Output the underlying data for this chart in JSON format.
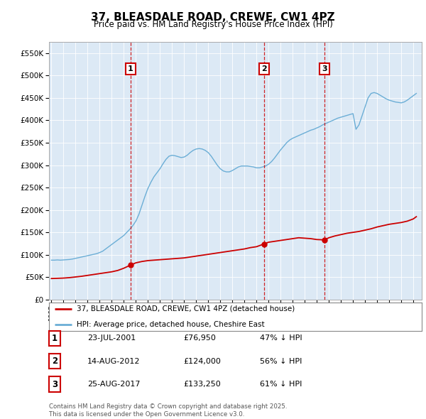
{
  "title": "37, BLEASDALE ROAD, CREWE, CW1 4PZ",
  "subtitle": "Price paid vs. HM Land Registry's House Price Index (HPI)",
  "plot_bg_color": "#dce9f5",
  "hpi_color": "#6baed6",
  "price_color": "#cc0000",
  "sale_dates": [
    2001.556,
    2012.617,
    2017.644
  ],
  "sale_prices": [
    76950,
    124000,
    133250
  ],
  "sale_labels": [
    "1",
    "2",
    "3"
  ],
  "annotation_rows": [
    {
      "label": "1",
      "date": "23-JUL-2001",
      "price": "£76,950",
      "note": "47% ↓ HPI"
    },
    {
      "label": "2",
      "date": "14-AUG-2012",
      "price": "£124,000",
      "note": "56% ↓ HPI"
    },
    {
      "label": "3",
      "date": "25-AUG-2017",
      "price": "£133,250",
      "note": "61% ↓ HPI"
    }
  ],
  "legend_line1": "37, BLEASDALE ROAD, CREWE, CW1 4PZ (detached house)",
  "legend_line2": "HPI: Average price, detached house, Cheshire East",
  "footer": "Contains HM Land Registry data © Crown copyright and database right 2025.\nThis data is licensed under the Open Government Licence v3.0.",
  "ytick_values": [
    0,
    50000,
    100000,
    150000,
    200000,
    250000,
    300000,
    350000,
    400000,
    450000,
    500000,
    550000
  ],
  "ylim": [
    0,
    575000
  ],
  "xlim_start": 1994.8,
  "xlim_end": 2025.7,
  "hpi_data_years": [
    1995.0,
    1995.25,
    1995.5,
    1995.75,
    1996.0,
    1996.25,
    1996.5,
    1996.75,
    1997.0,
    1997.25,
    1997.5,
    1997.75,
    1998.0,
    1998.25,
    1998.5,
    1998.75,
    1999.0,
    1999.25,
    1999.5,
    1999.75,
    2000.0,
    2000.25,
    2000.5,
    2000.75,
    2001.0,
    2001.25,
    2001.5,
    2001.75,
    2002.0,
    2002.25,
    2002.5,
    2002.75,
    2003.0,
    2003.25,
    2003.5,
    2003.75,
    2004.0,
    2004.25,
    2004.5,
    2004.75,
    2005.0,
    2005.25,
    2005.5,
    2005.75,
    2006.0,
    2006.25,
    2006.5,
    2006.75,
    2007.0,
    2007.25,
    2007.5,
    2007.75,
    2008.0,
    2008.25,
    2008.5,
    2008.75,
    2009.0,
    2009.25,
    2009.5,
    2009.75,
    2010.0,
    2010.25,
    2010.5,
    2010.75,
    2011.0,
    2011.25,
    2011.5,
    2011.75,
    2012.0,
    2012.25,
    2012.5,
    2012.75,
    2013.0,
    2013.25,
    2013.5,
    2013.75,
    2014.0,
    2014.25,
    2014.5,
    2014.75,
    2015.0,
    2015.25,
    2015.5,
    2015.75,
    2016.0,
    2016.25,
    2016.5,
    2016.75,
    2017.0,
    2017.25,
    2017.5,
    2017.75,
    2018.0,
    2018.25,
    2018.5,
    2018.75,
    2019.0,
    2019.25,
    2019.5,
    2019.75,
    2020.0,
    2020.25,
    2020.5,
    2020.75,
    2021.0,
    2021.25,
    2021.5,
    2021.75,
    2022.0,
    2022.25,
    2022.5,
    2022.75,
    2023.0,
    2023.25,
    2023.5,
    2023.75,
    2024.0,
    2024.25,
    2024.5,
    2024.75,
    2025.0,
    2025.25
  ],
  "hpi_data_values": [
    88000,
    88000,
    88500,
    88000,
    88500,
    89000,
    89500,
    90500,
    92000,
    93500,
    95000,
    96500,
    98000,
    99500,
    101000,
    102500,
    105000,
    108000,
    113000,
    118000,
    123000,
    128000,
    133000,
    138000,
    143000,
    150000,
    157000,
    165000,
    175000,
    190000,
    210000,
    230000,
    248000,
    262000,
    274000,
    283000,
    292000,
    303000,
    313000,
    320000,
    322000,
    321000,
    319000,
    317000,
    318000,
    322000,
    328000,
    333000,
    336000,
    337000,
    336000,
    333000,
    328000,
    320000,
    310000,
    300000,
    292000,
    287000,
    285000,
    285000,
    288000,
    292000,
    296000,
    298000,
    298000,
    298000,
    297000,
    296000,
    294000,
    294000,
    296000,
    298000,
    302000,
    308000,
    316000,
    325000,
    334000,
    342000,
    350000,
    356000,
    360000,
    363000,
    366000,
    369000,
    372000,
    375000,
    378000,
    380000,
    383000,
    386000,
    390000,
    393000,
    396000,
    399000,
    402000,
    405000,
    407000,
    409000,
    411000,
    413000,
    415000,
    380000,
    390000,
    410000,
    430000,
    450000,
    460000,
    462000,
    460000,
    456000,
    452000,
    448000,
    445000,
    443000,
    441000,
    440000,
    439000,
    441000,
    445000,
    450000,
    455000,
    460000
  ],
  "price_data_years": [
    1995.0,
    1995.5,
    1996.0,
    1996.5,
    1997.0,
    1997.5,
    1998.0,
    1998.5,
    1999.0,
    1999.5,
    2000.0,
    2000.5,
    2001.0,
    2001.556,
    2002.0,
    2002.5,
    2003.0,
    2003.5,
    2004.0,
    2004.5,
    2005.0,
    2005.5,
    2006.0,
    2006.5,
    2007.0,
    2007.5,
    2008.0,
    2008.5,
    2009.0,
    2009.5,
    2010.0,
    2010.5,
    2011.0,
    2011.5,
    2012.0,
    2012.617,
    2013.0,
    2013.5,
    2014.0,
    2014.5,
    2015.0,
    2015.5,
    2016.0,
    2016.5,
    2017.0,
    2017.644,
    2018.0,
    2018.5,
    2019.0,
    2019.5,
    2020.0,
    2020.5,
    2021.0,
    2021.5,
    2022.0,
    2022.5,
    2023.0,
    2023.5,
    2024.0,
    2024.5,
    2025.0,
    2025.25
  ],
  "price_data_values": [
    47000,
    47500,
    48000,
    49000,
    50500,
    52000,
    54000,
    56000,
    58000,
    60000,
    62000,
    65000,
    70000,
    76950,
    82000,
    85000,
    87000,
    88000,
    89000,
    90000,
    91000,
    92000,
    93000,
    95000,
    97000,
    99000,
    101000,
    103000,
    105000,
    107000,
    109000,
    111000,
    113000,
    116000,
    118000,
    124000,
    128000,
    130000,
    132000,
    134000,
    136000,
    138000,
    137000,
    136000,
    134000,
    133250,
    138000,
    142000,
    145000,
    148000,
    150000,
    152000,
    155000,
    158000,
    162000,
    165000,
    168000,
    170000,
    172000,
    175000,
    180000,
    185000
  ]
}
